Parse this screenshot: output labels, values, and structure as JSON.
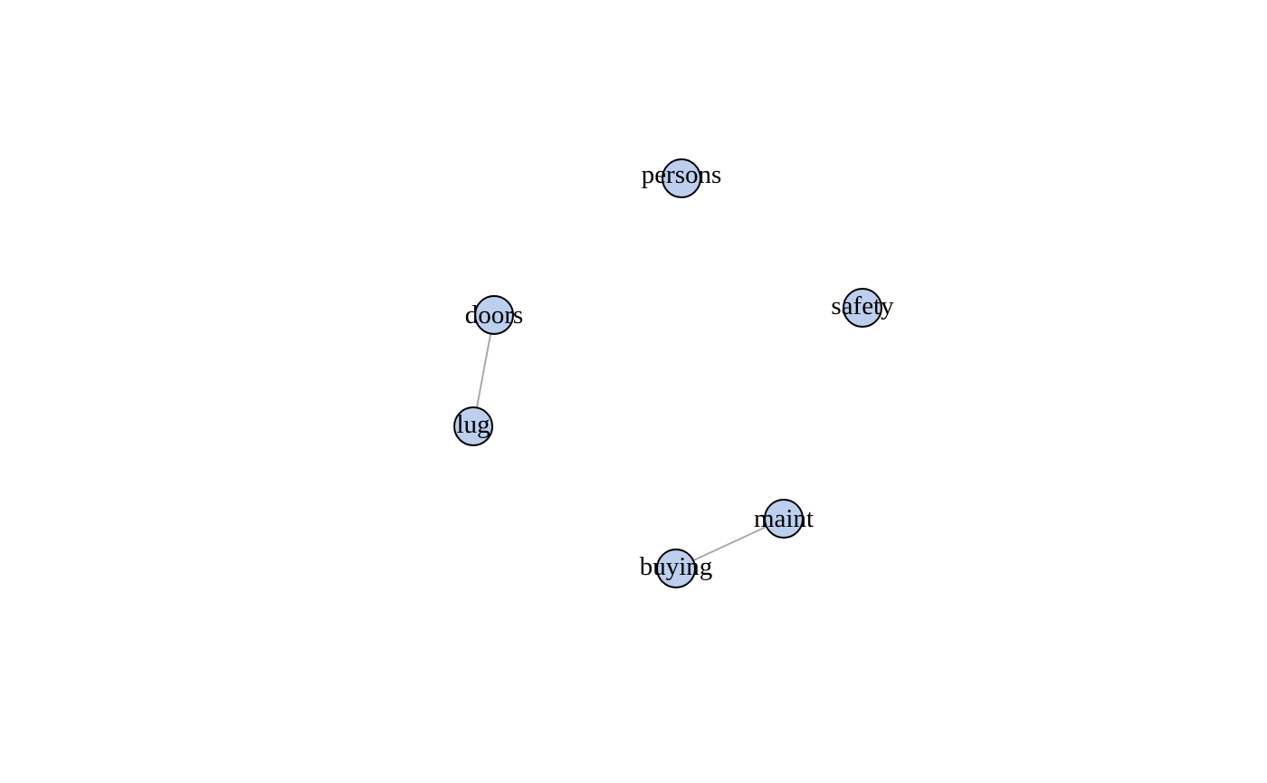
{
  "graph": {
    "node_color": "#bccfee",
    "edge_color": "#a9a9a9",
    "nodes": [
      {
        "id": "persons",
        "label": "persons"
      },
      {
        "id": "doors",
        "label": "doors"
      },
      {
        "id": "safety",
        "label": "safety"
      },
      {
        "id": "lug",
        "label": "lug"
      },
      {
        "id": "maint",
        "label": "maint"
      },
      {
        "id": "buying",
        "label": "buying"
      }
    ],
    "edges": [
      {
        "source": "doors",
        "target": "lug"
      },
      {
        "source": "maint",
        "target": "buying"
      }
    ]
  }
}
